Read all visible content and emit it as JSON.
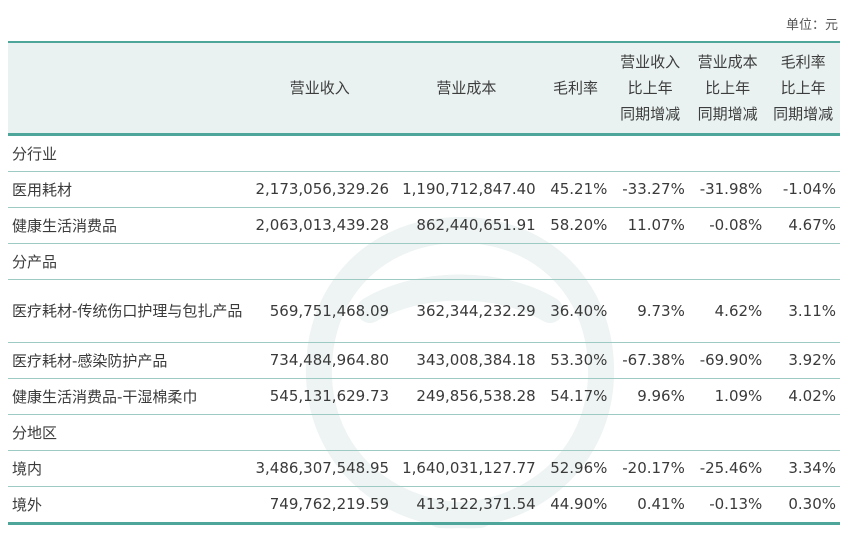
{
  "unit_label": "单位：元",
  "headers": {
    "revenue": "营业收入",
    "cost": "营业成本",
    "margin": "毛利率",
    "rev_change": [
      "营业收入",
      "比上年",
      "同期增减"
    ],
    "cost_change": [
      "营业成本",
      "比上年",
      "同期增减"
    ],
    "margin_change": [
      "毛利率",
      "比上年",
      "同期增减"
    ]
  },
  "sections": [
    {
      "title": "分行业",
      "rows": [
        {
          "name": "医用耗材",
          "revenue": "2,173,056,329.26",
          "cost": "1,190,712,847.40",
          "margin": "45.21%",
          "rev_change": "-33.27%",
          "cost_change": "-31.98%",
          "margin_change": "-1.04%"
        },
        {
          "name": "健康生活消费品",
          "revenue": "2,063,013,439.28",
          "cost": "862,440,651.91",
          "margin": "58.20%",
          "rev_change": "11.07%",
          "cost_change": "-0.08%",
          "margin_change": "4.67%"
        }
      ]
    },
    {
      "title": "分产品",
      "rows": [
        {
          "name": "医疗耗材-传统伤口护理与包扎产品",
          "revenue": "569,751,468.09",
          "cost": "362,344,232.29",
          "margin": "36.40%",
          "rev_change": "9.73%",
          "cost_change": "4.62%",
          "margin_change": "3.11%"
        },
        {
          "name": "医疗耗材-感染防护产品",
          "revenue": "734,484,964.80",
          "cost": "343,008,384.18",
          "margin": "53.30%",
          "rev_change": "-67.38%",
          "cost_change": "-69.90%",
          "margin_change": "3.92%"
        },
        {
          "name": "健康生活消费品-干湿棉柔巾",
          "revenue": "545,131,629.73",
          "cost": "249,856,538.28",
          "margin": "54.17%",
          "rev_change": "9.96%",
          "cost_change": "1.09%",
          "margin_change": "4.02%"
        }
      ]
    },
    {
      "title": "分地区",
      "rows": [
        {
          "name": "境内",
          "revenue": "3,486,307,548.95",
          "cost": "1,640,031,127.77",
          "margin": "52.96%",
          "rev_change": "-20.17%",
          "cost_change": "-25.46%",
          "margin_change": "3.34%"
        },
        {
          "name": "境外",
          "revenue": "749,762,219.59",
          "cost": "413,122,371.54",
          "margin": "44.90%",
          "rev_change": "0.41%",
          "cost_change": "-0.13%",
          "margin_change": "0.30%"
        }
      ]
    }
  ]
}
